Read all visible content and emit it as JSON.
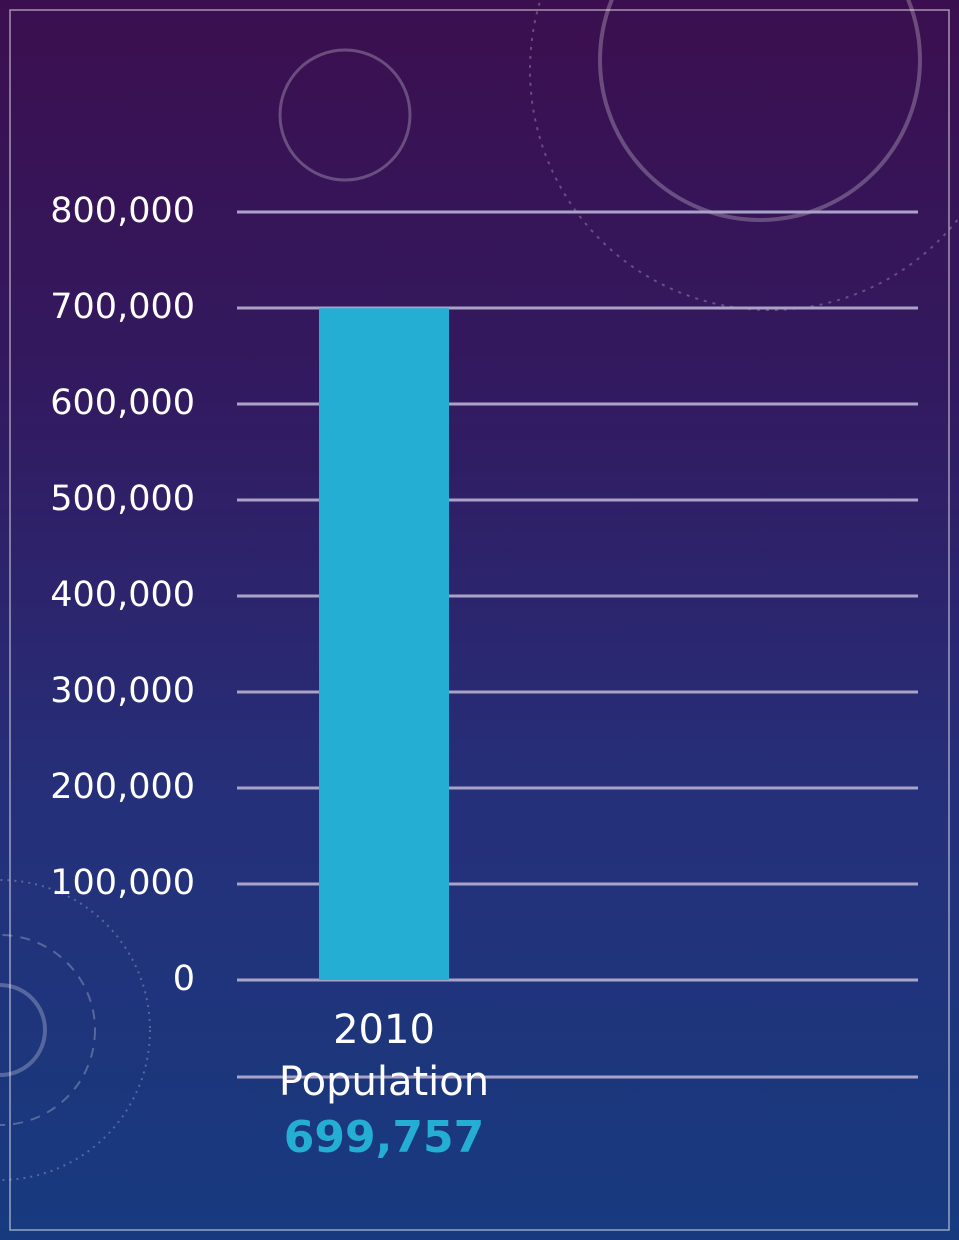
{
  "chart_data": {
    "type": "bar",
    "categories": [
      "2010 Population"
    ],
    "values": [
      699757
    ],
    "value_labels": [
      "699,757"
    ],
    "color": "#25aed4",
    "ylim": [
      0,
      800000
    ],
    "yticks": [
      0,
      {
        "value": 100000,
        "label": "100,000"
      },
      {
        "value": 200000,
        "label": "200,000"
      },
      {
        "value": 300000,
        "label": "300,000"
      },
      {
        "value": 400000,
        "label": "400,000"
      },
      {
        "value": 500000,
        "label": "500,000"
      },
      {
        "value": 600000,
        "label": "600,000"
      },
      {
        "value": 700000,
        "label": "700,000"
      },
      {
        "value": 800000,
        "label": "800,000"
      }
    ],
    "grid": true
  }
}
